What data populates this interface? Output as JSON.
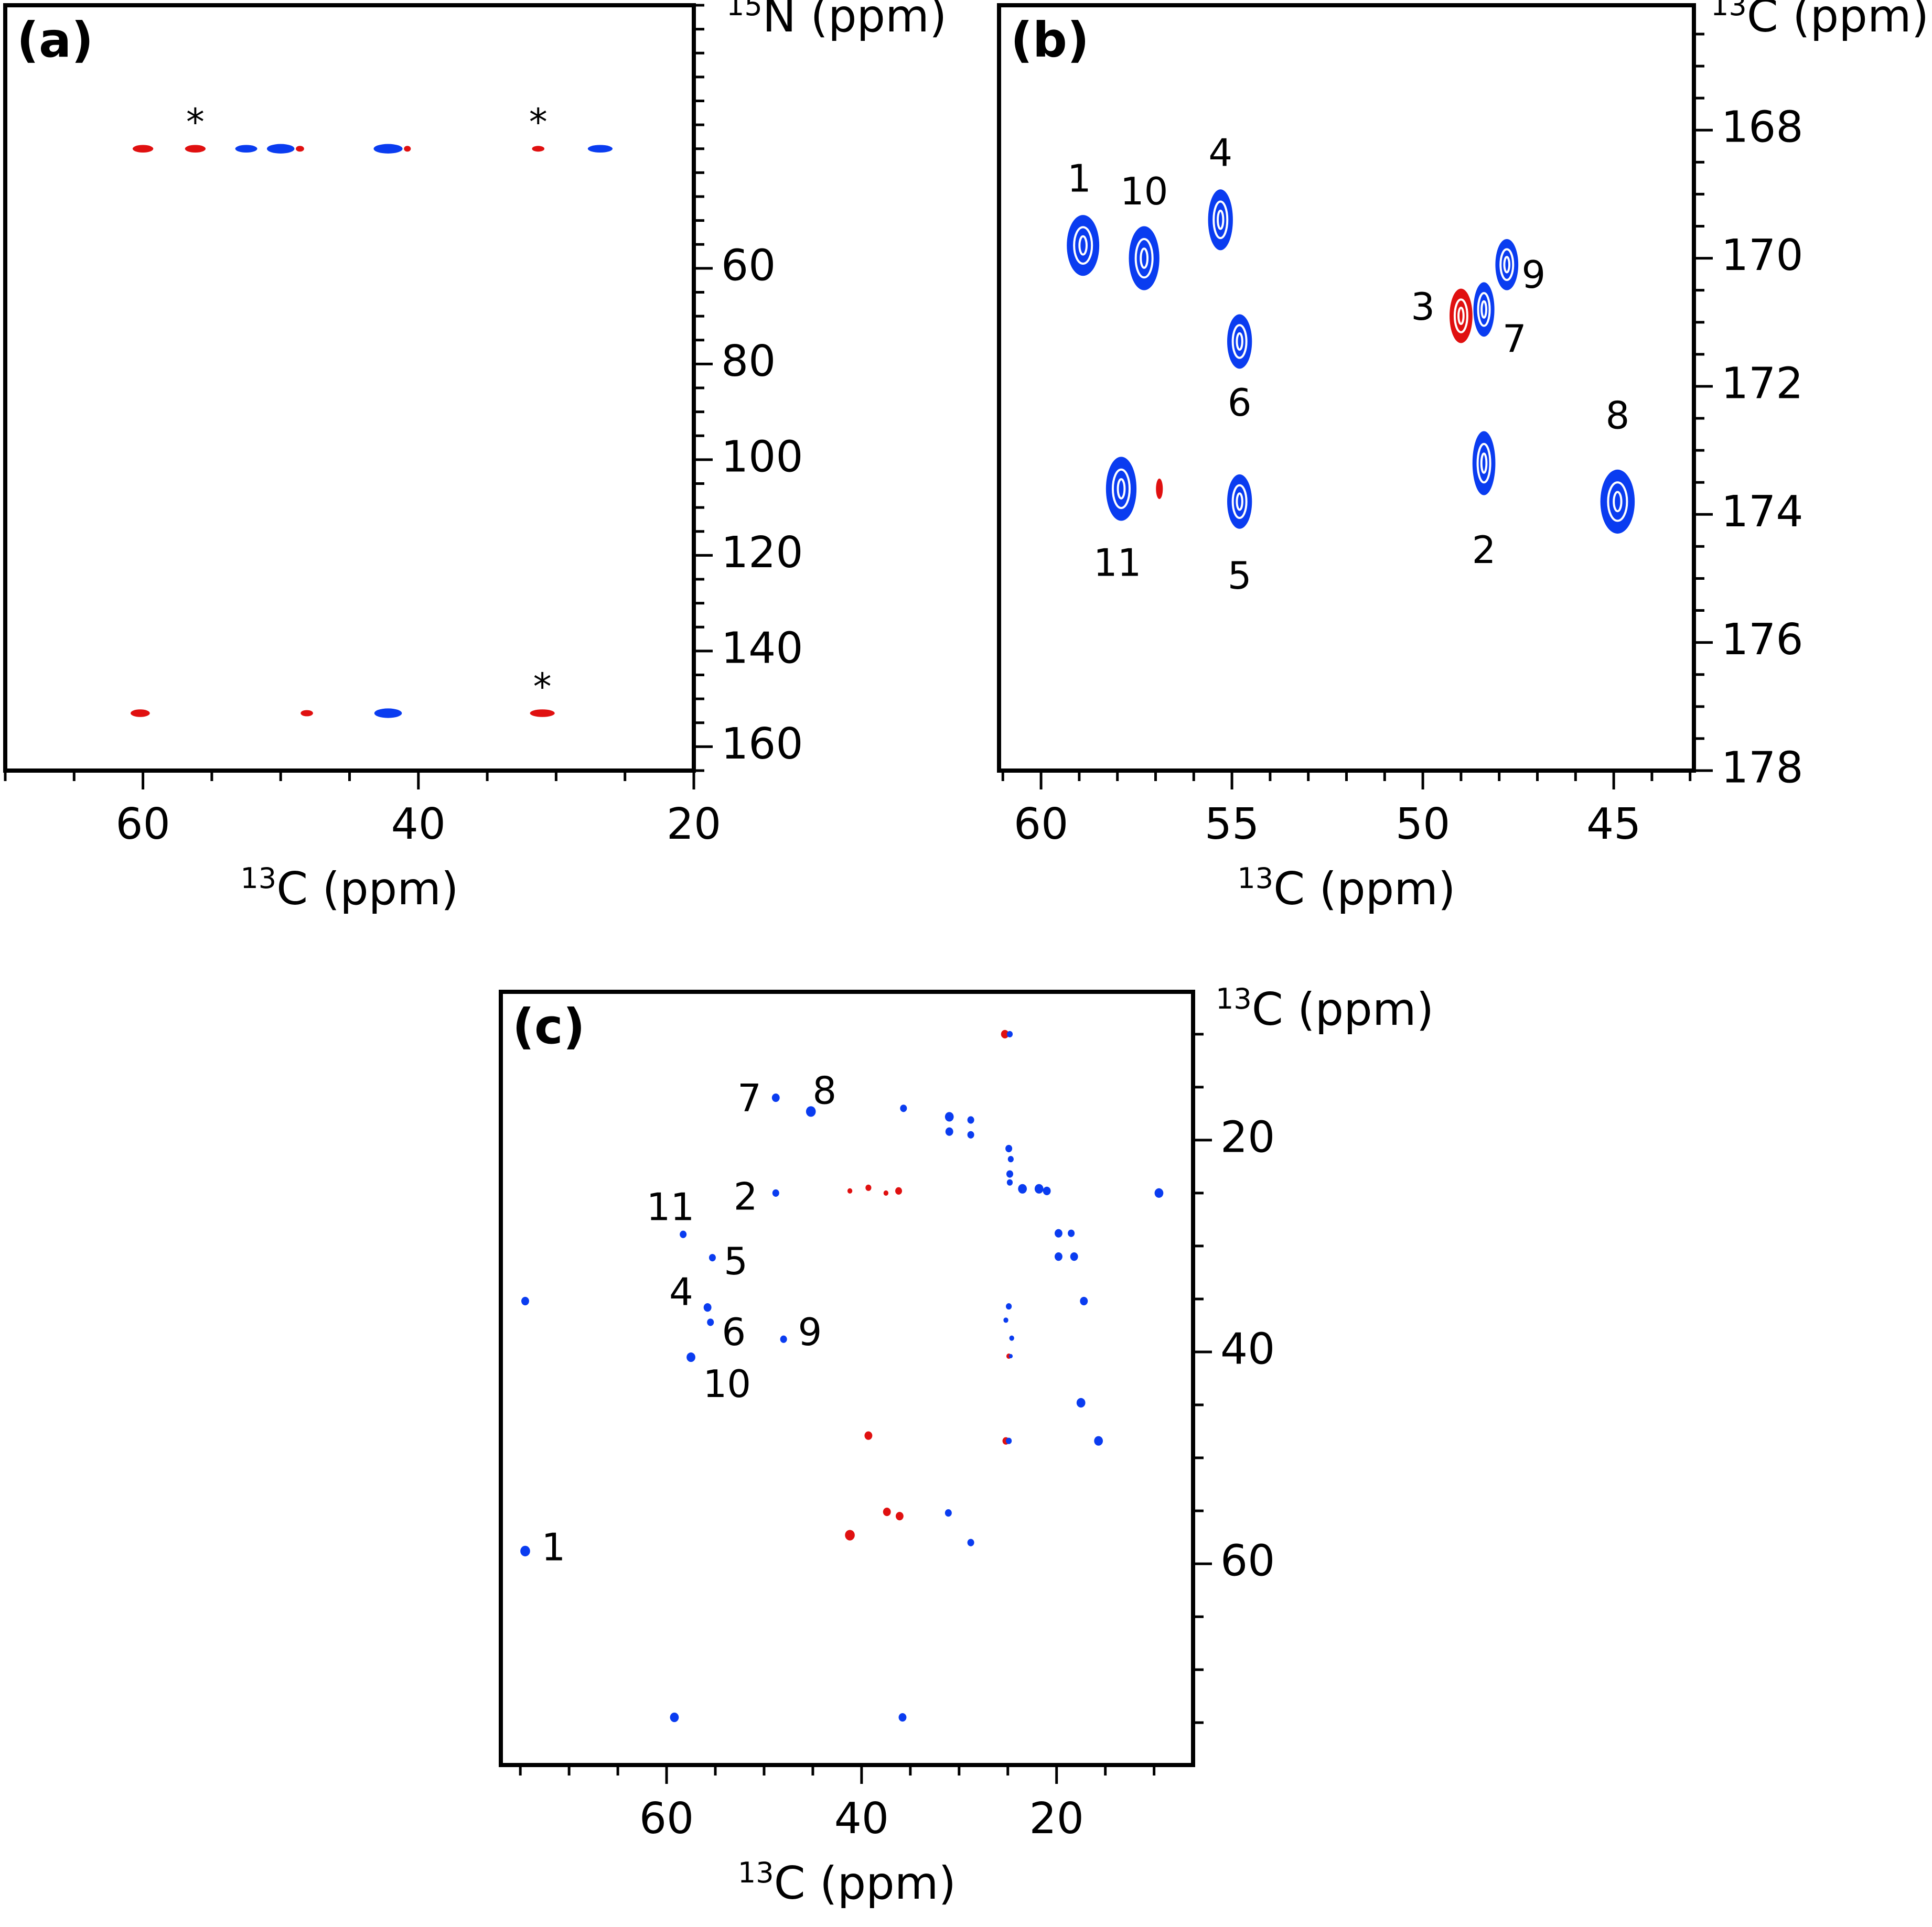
{
  "colors": {
    "positive": "#0a3cf0",
    "negative": "#e01010",
    "axis": "#000000"
  },
  "chart_data": [
    {
      "panel": "(a)",
      "type": "scatter",
      "subtype": "2D NMR contour spectrum",
      "xlabel_iso": "13",
      "xlabel_main": "C (ppm)",
      "ylabel_iso": "15",
      "ylabel_main": "N (ppm)",
      "xlim": [
        70,
        20
      ],
      "ylim": [
        5,
        165
      ],
      "xticks": [
        60,
        40,
        20
      ],
      "yticks": [
        60,
        80,
        100,
        120,
        140,
        160
      ],
      "x_minor_step": 5,
      "y_minor_step": 5,
      "peaks": [
        {
          "x": 60.0,
          "y": 35.0,
          "sign": "negative",
          "w": 1.5,
          "h": 1.6
        },
        {
          "x": 56.2,
          "y": 35.0,
          "sign": "negative",
          "w": 1.5,
          "h": 1.6
        },
        {
          "x": 52.5,
          "y": 35.0,
          "sign": "positive",
          "w": 1.6,
          "h": 1.6
        },
        {
          "x": 50.0,
          "y": 35.0,
          "sign": "positive",
          "w": 2.0,
          "h": 2.0
        },
        {
          "x": 48.6,
          "y": 35.0,
          "sign": "negative",
          "w": 0.6,
          "h": 1.2
        },
        {
          "x": 42.2,
          "y": 35.0,
          "sign": "positive",
          "w": 2.1,
          "h": 2.0
        },
        {
          "x": 40.8,
          "y": 35.0,
          "sign": "negative",
          "w": 0.5,
          "h": 1.2
        },
        {
          "x": 31.3,
          "y": 35.0,
          "sign": "negative",
          "w": 0.9,
          "h": 1.2
        },
        {
          "x": 26.8,
          "y": 35.0,
          "sign": "positive",
          "w": 1.8,
          "h": 1.6
        },
        {
          "x": 60.2,
          "y": 153.0,
          "sign": "negative",
          "w": 1.4,
          "h": 1.6
        },
        {
          "x": 48.1,
          "y": 153.0,
          "sign": "negative",
          "w": 0.9,
          "h": 1.3
        },
        {
          "x": 42.2,
          "y": 153.0,
          "sign": "positive",
          "w": 2.0,
          "h": 2.0
        },
        {
          "x": 31.0,
          "y": 153.0,
          "sign": "negative",
          "w": 1.8,
          "h": 1.6
        }
      ],
      "annotations": [
        {
          "text": "*",
          "x": 56.2,
          "y": 30.0
        },
        {
          "text": "*",
          "x": 31.3,
          "y": 30.0
        },
        {
          "text": "*",
          "x": 31.0,
          "y": 148.0
        }
      ]
    },
    {
      "panel": "(b)",
      "type": "scatter",
      "subtype": "2D NMR contour spectrum",
      "xlabel_iso": "13",
      "xlabel_main": "C (ppm)",
      "ylabel_iso": "13",
      "ylabel_main": "C (ppm)",
      "xlim": [
        61.1,
        42.9
      ],
      "ylim": [
        166.05,
        178.0
      ],
      "xticks": [
        60,
        55,
        50,
        45
      ],
      "yticks": [
        168,
        170,
        172,
        174,
        176,
        178
      ],
      "x_minor_step": 1,
      "y_minor_step": 0.5,
      "peaks": [
        {
          "x": 58.9,
          "y": 169.8,
          "sign": "positive",
          "w": 0.85,
          "h": 0.95
        },
        {
          "x": 57.3,
          "y": 170.0,
          "sign": "positive",
          "w": 0.8,
          "h": 1.0
        },
        {
          "x": 55.3,
          "y": 169.4,
          "sign": "positive",
          "w": 0.65,
          "h": 0.95
        },
        {
          "x": 54.8,
          "y": 171.3,
          "sign": "positive",
          "w": 0.65,
          "h": 0.85
        },
        {
          "x": 49.0,
          "y": 170.9,
          "sign": "negative",
          "w": 0.6,
          "h": 0.85
        },
        {
          "x": 48.4,
          "y": 170.8,
          "sign": "positive",
          "w": 0.55,
          "h": 0.85
        },
        {
          "x": 47.8,
          "y": 170.1,
          "sign": "positive",
          "w": 0.6,
          "h": 0.8
        },
        {
          "x": 57.9,
          "y": 173.6,
          "sign": "positive",
          "w": 0.8,
          "h": 1.0
        },
        {
          "x": 56.9,
          "y": 173.6,
          "sign": "negative",
          "w": 0.18,
          "h": 0.32
        },
        {
          "x": 54.8,
          "y": 173.8,
          "sign": "positive",
          "w": 0.65,
          "h": 0.85
        },
        {
          "x": 48.4,
          "y": 173.2,
          "sign": "positive",
          "w": 0.6,
          "h": 1.0
        },
        {
          "x": 44.9,
          "y": 173.8,
          "sign": "positive",
          "w": 0.9,
          "h": 1.0
        }
      ],
      "labels": [
        {
          "text": "1",
          "x": 59.0,
          "y": 168.8
        },
        {
          "text": "10",
          "x": 57.3,
          "y": 169.0
        },
        {
          "text": "4",
          "x": 55.3,
          "y": 168.4
        },
        {
          "text": "6",
          "x": 54.8,
          "y": 172.3
        },
        {
          "text": "3",
          "x": 50.0,
          "y": 170.8
        },
        {
          "text": "9",
          "x": 47.1,
          "y": 170.3
        },
        {
          "text": "7",
          "x": 47.6,
          "y": 171.3
        },
        {
          "text": "11",
          "x": 58.0,
          "y": 174.8
        },
        {
          "text": "5",
          "x": 54.8,
          "y": 175.0
        },
        {
          "text": "2",
          "x": 48.4,
          "y": 174.6
        },
        {
          "text": "8",
          "x": 44.9,
          "y": 172.5
        }
      ]
    },
    {
      "panel": "(c)",
      "type": "scatter",
      "subtype": "2D NMR contour spectrum",
      "xlabel_iso": "13",
      "xlabel_main": "C (ppm)",
      "ylabel_iso": "13",
      "ylabel_main": "C (ppm)",
      "xlim": [
        77.0,
        6.0
      ],
      "ylim": [
        6.0,
        79.0
      ],
      "xticks": [
        60,
        40,
        20
      ],
      "yticks": [
        20,
        40,
        60
      ],
      "x_minor_step": 5,
      "y_minor_step": 5,
      "peaks": [
        {
          "x": 25.3,
          "y": 10.0,
          "sign": "negative",
          "d": 0.8
        },
        {
          "x": 24.8,
          "y": 10.0,
          "sign": "positive",
          "d": 0.6
        },
        {
          "x": 48.8,
          "y": 16.0,
          "sign": "positive",
          "d": 0.8
        },
        {
          "x": 45.2,
          "y": 17.3,
          "sign": "positive",
          "d": 1.0
        },
        {
          "x": 35.7,
          "y": 17.0,
          "sign": "positive",
          "d": 0.7
        },
        {
          "x": 31.0,
          "y": 17.8,
          "sign": "positive",
          "d": 0.9
        },
        {
          "x": 31.0,
          "y": 19.2,
          "sign": "positive",
          "d": 0.8
        },
        {
          "x": 28.8,
          "y": 18.1,
          "sign": "positive",
          "d": 0.7
        },
        {
          "x": 28.8,
          "y": 19.5,
          "sign": "positive",
          "d": 0.7
        },
        {
          "x": 24.9,
          "y": 20.8,
          "sign": "positive",
          "d": 0.7
        },
        {
          "x": 24.7,
          "y": 21.8,
          "sign": "positive",
          "d": 0.6
        },
        {
          "x": 24.8,
          "y": 23.2,
          "sign": "positive",
          "d": 0.7
        },
        {
          "x": 24.8,
          "y": 24.0,
          "sign": "positive",
          "d": 0.6
        },
        {
          "x": 23.5,
          "y": 24.6,
          "sign": "positive",
          "d": 0.9
        },
        {
          "x": 21.8,
          "y": 24.6,
          "sign": "positive",
          "d": 0.9
        },
        {
          "x": 21.0,
          "y": 24.8,
          "sign": "positive",
          "d": 0.8
        },
        {
          "x": 9.5,
          "y": 25.0,
          "sign": "positive",
          "d": 0.9
        },
        {
          "x": 48.8,
          "y": 25.0,
          "sign": "positive",
          "d": 0.7
        },
        {
          "x": 41.2,
          "y": 24.8,
          "sign": "negative",
          "d": 0.5
        },
        {
          "x": 39.3,
          "y": 24.5,
          "sign": "negative",
          "d": 0.6
        },
        {
          "x": 37.5,
          "y": 25.0,
          "sign": "negative",
          "d": 0.5
        },
        {
          "x": 36.2,
          "y": 24.8,
          "sign": "negative",
          "d": 0.7
        },
        {
          "x": 58.3,
          "y": 28.9,
          "sign": "positive",
          "d": 0.7
        },
        {
          "x": 55.3,
          "y": 31.1,
          "sign": "positive",
          "d": 0.7
        },
        {
          "x": 19.8,
          "y": 28.8,
          "sign": "positive",
          "d": 0.8
        },
        {
          "x": 18.5,
          "y": 28.8,
          "sign": "positive",
          "d": 0.7
        },
        {
          "x": 19.8,
          "y": 31.0,
          "sign": "positive",
          "d": 0.8
        },
        {
          "x": 18.2,
          "y": 31.0,
          "sign": "positive",
          "d": 0.8
        },
        {
          "x": 74.5,
          "y": 35.2,
          "sign": "positive",
          "d": 0.8
        },
        {
          "x": 55.8,
          "y": 35.8,
          "sign": "positive",
          "d": 0.8
        },
        {
          "x": 55.5,
          "y": 37.2,
          "sign": "positive",
          "d": 0.7
        },
        {
          "x": 48.0,
          "y": 38.8,
          "sign": "positive",
          "d": 0.7
        },
        {
          "x": 57.5,
          "y": 40.5,
          "sign": "positive",
          "d": 0.9
        },
        {
          "x": 24.9,
          "y": 35.7,
          "sign": "positive",
          "d": 0.6
        },
        {
          "x": 25.2,
          "y": 37.0,
          "sign": "positive",
          "d": 0.5
        },
        {
          "x": 24.6,
          "y": 38.7,
          "sign": "positive",
          "d": 0.5
        },
        {
          "x": 24.9,
          "y": 40.4,
          "sign": "negative",
          "d": 0.5
        },
        {
          "x": 24.7,
          "y": 40.4,
          "sign": "positive",
          "d": 0.4
        },
        {
          "x": 17.2,
          "y": 35.2,
          "sign": "positive",
          "d": 0.8
        },
        {
          "x": 17.5,
          "y": 44.8,
          "sign": "positive",
          "d": 0.9
        },
        {
          "x": 15.7,
          "y": 48.4,
          "sign": "positive",
          "d": 0.9
        },
        {
          "x": 39.3,
          "y": 47.9,
          "sign": "negative",
          "d": 0.8
        },
        {
          "x": 25.2,
          "y": 48.4,
          "sign": "negative",
          "d": 0.7
        },
        {
          "x": 24.9,
          "y": 48.4,
          "sign": "positive",
          "d": 0.6
        },
        {
          "x": 41.2,
          "y": 57.3,
          "sign": "negative",
          "d": 1.0
        },
        {
          "x": 37.4,
          "y": 55.1,
          "sign": "negative",
          "d": 0.8
        },
        {
          "x": 36.1,
          "y": 55.5,
          "sign": "negative",
          "d": 0.8
        },
        {
          "x": 31.1,
          "y": 55.2,
          "sign": "positive",
          "d": 0.7
        },
        {
          "x": 28.8,
          "y": 58.0,
          "sign": "positive",
          "d": 0.7
        },
        {
          "x": 74.5,
          "y": 58.8,
          "sign": "positive",
          "d": 1.0
        },
        {
          "x": 59.2,
          "y": 74.5,
          "sign": "positive",
          "d": 0.9
        },
        {
          "x": 35.8,
          "y": 74.5,
          "sign": "positive",
          "d": 0.8
        }
      ],
      "labels": [
        {
          "text": "7",
          "x": 51.5,
          "y": 16.3
        },
        {
          "text": "8",
          "x": 43.8,
          "y": 15.6
        },
        {
          "text": "11",
          "x": 59.6,
          "y": 26.6
        },
        {
          "text": "2",
          "x": 51.9,
          "y": 25.6
        },
        {
          "text": "5",
          "x": 52.9,
          "y": 31.7
        },
        {
          "text": "4",
          "x": 58.5,
          "y": 34.6
        },
        {
          "text": "6",
          "x": 53.1,
          "y": 38.4
        },
        {
          "text": "9",
          "x": 45.3,
          "y": 38.4
        },
        {
          "text": "10",
          "x": 53.8,
          "y": 43.3
        },
        {
          "text": "1",
          "x": 71.6,
          "y": 58.7
        }
      ]
    }
  ]
}
